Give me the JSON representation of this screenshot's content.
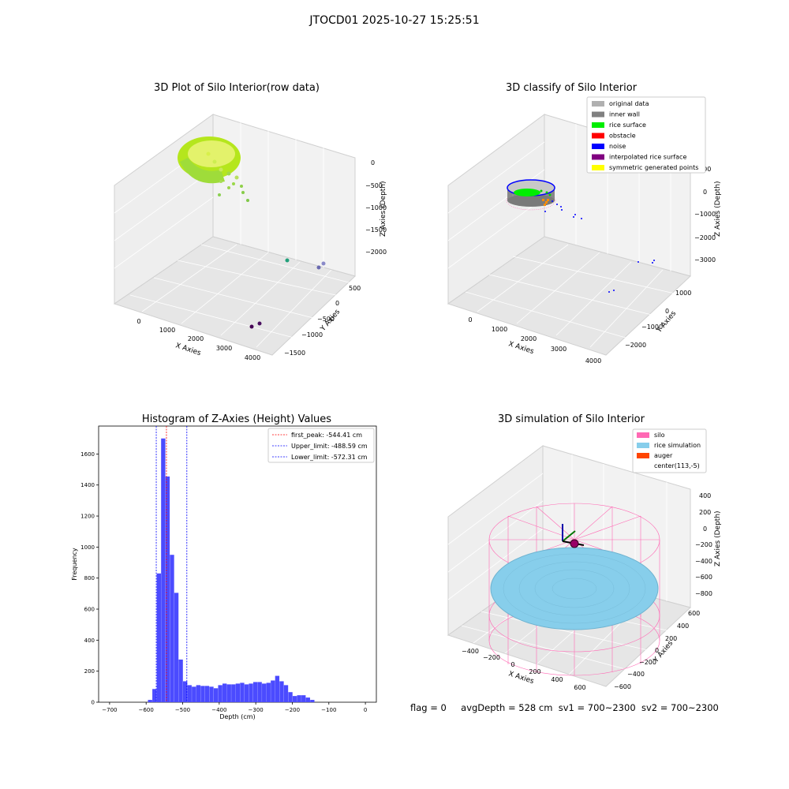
{
  "suptitle": "JTOCD01 2025-10-27 15:25:51",
  "footer": {
    "flag": "flag = 0",
    "avg_depth": "avgDepth = 528 cm",
    "sv1": "sv1 = 700~2300",
    "sv2": "sv2 = 700~2300"
  },
  "panel1": {
    "title": "3D Plot of Silo Interior(row data)",
    "xlabel": "X Axies",
    "ylabel": "Y Axies",
    "zlabel": "Z Axies (Depth)",
    "xticks": [
      "0",
      "1000",
      "2000",
      "3000",
      "4000"
    ],
    "yticks": [
      "500",
      "0",
      "−500",
      "−1000",
      "−1500"
    ],
    "zticks": [
      "0",
      "−500",
      "−1000",
      "−1500",
      "−2000"
    ]
  },
  "panel2": {
    "title": "3D classify of Silo Interior",
    "xlabel": "X Axies",
    "ylabel": "Y Axies",
    "zlabel": "Z Axies (Depth)",
    "xticks": [
      "0",
      "1000",
      "2000",
      "3000",
      "4000"
    ],
    "yticks": [
      "1000",
      "0",
      "−1000",
      "−2000"
    ],
    "zticks": [
      "1000",
      "0",
      "−1000",
      "−2000",
      "−3000"
    ],
    "legend": [
      {
        "label": "original data",
        "color": "#b0b0b0"
      },
      {
        "label": "inner wall",
        "color": "#808080"
      },
      {
        "label": "rice surface",
        "color": "#00ee00"
      },
      {
        "label": "obstacle",
        "color": "#ff0000"
      },
      {
        "label": "noise",
        "color": "#0000ff"
      },
      {
        "label": "interpolated rice surface",
        "color": "#800080"
      },
      {
        "label": "symmetric generated points",
        "color": "#ffff00"
      }
    ]
  },
  "panel3": {
    "title": "Histogram of Z-Axies (Height) Values",
    "xlabel": "Depth (cm)",
    "ylabel": "Frequency",
    "legend": [
      {
        "label": "first_peak: -544.41 cm",
        "color": "#ff0000"
      },
      {
        "label": "Upper_limit: -488.59 cm",
        "color": "#0000ff"
      },
      {
        "label": "Lower_limit: -572.31 cm",
        "color": "#0000ff"
      }
    ],
    "xticks": [
      "−700",
      "−600",
      "−500",
      "−400",
      "−300",
      "−200",
      "−100",
      "0"
    ],
    "yticks": [
      "0",
      "200",
      "400",
      "600",
      "800",
      "1000",
      "1200",
      "1400",
      "1600"
    ]
  },
  "panel4": {
    "title": "3D simulation of Silo Interior",
    "xlabel": "X Axies",
    "ylabel": "Y Axies",
    "zlabel": "Z Axies (Depth)",
    "xticks": [
      "−400",
      "−200",
      "0",
      "200",
      "400",
      "600"
    ],
    "yticks": [
      "600",
      "400",
      "200",
      "0",
      "−200",
      "−400",
      "−600"
    ],
    "zticks": [
      "400",
      "200",
      "0",
      "−200",
      "−400",
      "−600",
      "−800"
    ],
    "legend": [
      {
        "label": "silo",
        "color": "#ff69b4"
      },
      {
        "label": "rice simulation",
        "color": "#87ceeb"
      },
      {
        "label": "auger",
        "color": "#ff4500"
      },
      {
        "label": "center(113,-5)",
        "color": "#ffffff"
      }
    ]
  },
  "chart_data": {
    "type": "bar",
    "title": "Histogram of Z-Axies (Height) Values",
    "xlabel": "Depth (cm)",
    "ylabel": "Frequency",
    "xlim": [
      -730,
      30
    ],
    "ylim": [
      0,
      1780
    ],
    "bin_start": -595,
    "bin_width": 12,
    "values": [
      15,
      85,
      830,
      1700,
      1455,
      950,
      705,
      275,
      135,
      110,
      100,
      110,
      105,
      105,
      100,
      90,
      110,
      120,
      115,
      115,
      120,
      125,
      115,
      120,
      130,
      130,
      120,
      125,
      140,
      170,
      135,
      110,
      65,
      40,
      45,
      45,
      30,
      15
    ],
    "bar_color": "#4b4bff",
    "vlines": [
      {
        "x": -544.41,
        "color": "#ff0000",
        "label": "first_peak: -544.41 cm"
      },
      {
        "x": -488.59,
        "color": "#0000ff",
        "label": "Upper_limit: -488.59 cm"
      },
      {
        "x": -572.31,
        "color": "#0000ff",
        "label": "Lower_limit: -572.31 cm"
      }
    ],
    "legend_position": "upper right"
  }
}
